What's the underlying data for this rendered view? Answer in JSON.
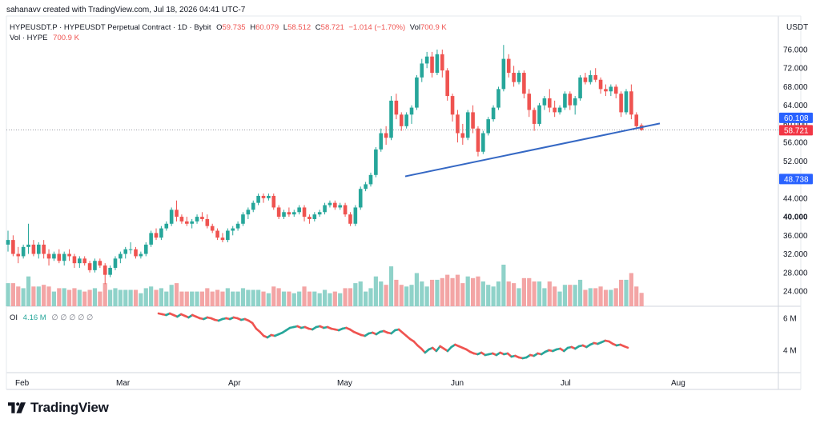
{
  "header": {
    "attribution": "sahanavv created with TradingView.com, Jul 18, 2026 04:41 UTC-7"
  },
  "legend": {
    "symbol": "HYPEUSDT.P · HYPEUSDT Perpetual Contract · 1D · Bybit",
    "o_label": "O",
    "o_value": "59.735",
    "h_label": "H",
    "h_value": "60.079",
    "l_label": "L",
    "l_value": "58.512",
    "c_label": "C",
    "c_value": "58.721",
    "change": "−1.014 (−1.70%)",
    "vol_label": "Vol",
    "vol_value": "700.9 K",
    "vol_line_label": "Vol · HYPE",
    "vol_line_value": "700.9 K"
  },
  "oi_legend": {
    "label": "OI",
    "value": "4.16 M",
    "placeholders": "∅ ∅ ∅ ∅ ∅"
  },
  "branding": {
    "text": "TradingView"
  },
  "colors": {
    "up": "#26a69a",
    "down": "#ef5350",
    "up_vol": "#8fd2c9",
    "down_vol": "#f3a5a5",
    "trendline": "#3568c4",
    "price_label": "#f23645",
    "blue_label": "#2962ff"
  },
  "chart_data": {
    "type": "candlestick",
    "currency": "USDT",
    "y_ticks": [
      "76.000",
      "72.000",
      "68.000",
      "64.000",
      "60.000",
      "56.000",
      "52.000",
      "48.000",
      "44.000",
      "40.000",
      "36.000",
      "32.000",
      "28.000",
      "24.000"
    ],
    "y_tick_values": [
      76,
      72,
      68,
      64,
      60,
      56,
      52,
      48,
      44,
      40,
      36,
      32,
      28,
      24
    ],
    "ylim": [
      21,
      78
    ],
    "x_labels": [
      "Feb",
      "Mar",
      "Apr",
      "May",
      "Jun",
      "Jul",
      "Aug"
    ],
    "price_labels": {
      "upper": "60.108",
      "last": "58.721",
      "trendline": "48.738"
    },
    "trendline": {
      "from_price": 48.7,
      "to_price": 60.1
    },
    "candles": [
      {
        "o": 34.0,
        "h": 37.0,
        "c": 35.0,
        "l": 32.5
      },
      {
        "o": 35.0,
        "h": 36.0,
        "c": 32.0,
        "l": 31.5
      },
      {
        "o": 32.0,
        "h": 33.5,
        "c": 31.5,
        "l": 30.0
      },
      {
        "o": 31.5,
        "h": 34.0,
        "c": 33.5,
        "l": 31.0
      },
      {
        "o": 33.5,
        "h": 38.5,
        "c": 34.0,
        "l": 32.0
      },
      {
        "o": 34.0,
        "h": 35.0,
        "c": 32.0,
        "l": 31.5
      },
      {
        "o": 32.0,
        "h": 34.5,
        "c": 34.0,
        "l": 31.0
      },
      {
        "o": 34.0,
        "h": 35.0,
        "c": 32.0,
        "l": 31.0
      },
      {
        "o": 32.0,
        "h": 33.0,
        "c": 31.0,
        "l": 29.5
      },
      {
        "o": 31.0,
        "h": 32.5,
        "c": 32.0,
        "l": 30.5
      },
      {
        "o": 32.0,
        "h": 33.0,
        "c": 30.5,
        "l": 30.0
      },
      {
        "o": 30.5,
        "h": 32.5,
        "c": 32.0,
        "l": 29.5
      },
      {
        "o": 32.0,
        "h": 33.0,
        "c": 31.5,
        "l": 30.5
      },
      {
        "o": 31.5,
        "h": 32.0,
        "c": 30.0,
        "l": 29.0
      },
      {
        "o": 30.0,
        "h": 31.5,
        "c": 31.0,
        "l": 29.0
      },
      {
        "o": 31.0,
        "h": 31.5,
        "c": 30.0,
        "l": 29.5
      },
      {
        "o": 30.0,
        "h": 30.5,
        "c": 28.5,
        "l": 28.0
      },
      {
        "o": 28.5,
        "h": 31.0,
        "c": 30.5,
        "l": 28.0
      },
      {
        "o": 30.5,
        "h": 31.0,
        "c": 29.5,
        "l": 29.0
      },
      {
        "o": 29.5,
        "h": 30.0,
        "c": 27.5,
        "l": 25.5
      },
      {
        "o": 27.5,
        "h": 29.5,
        "c": 29.0,
        "l": 27.0
      },
      {
        "o": 29.0,
        "h": 31.5,
        "c": 31.0,
        "l": 28.5
      },
      {
        "o": 31.0,
        "h": 32.5,
        "c": 32.0,
        "l": 30.0
      },
      {
        "o": 32.0,
        "h": 33.5,
        "c": 33.0,
        "l": 31.0
      },
      {
        "o": 33.0,
        "h": 34.5,
        "c": 33.0,
        "l": 32.0
      },
      {
        "o": 33.0,
        "h": 33.5,
        "c": 31.5,
        "l": 31.0
      },
      {
        "o": 31.5,
        "h": 32.5,
        "c": 32.0,
        "l": 31.0
      },
      {
        "o": 32.0,
        "h": 34.5,
        "c": 34.0,
        "l": 31.5
      },
      {
        "o": 34.0,
        "h": 37.0,
        "c": 36.5,
        "l": 33.5
      },
      {
        "o": 36.5,
        "h": 37.5,
        "c": 35.5,
        "l": 35.0
      },
      {
        "o": 35.5,
        "h": 38.0,
        "c": 37.5,
        "l": 35.0
      },
      {
        "o": 37.5,
        "h": 39.0,
        "c": 38.5,
        "l": 37.0
      },
      {
        "o": 38.5,
        "h": 42.0,
        "c": 41.5,
        "l": 38.0
      },
      {
        "o": 41.5,
        "h": 43.5,
        "c": 40.0,
        "l": 39.0
      },
      {
        "o": 40.0,
        "h": 40.5,
        "c": 39.0,
        "l": 38.5
      },
      {
        "o": 39.0,
        "h": 40.0,
        "c": 38.5,
        "l": 38.0
      },
      {
        "o": 38.5,
        "h": 39.5,
        "c": 39.0,
        "l": 37.5
      },
      {
        "o": 39.0,
        "h": 40.5,
        "c": 40.0,
        "l": 38.5
      },
      {
        "o": 40.0,
        "h": 41.0,
        "c": 39.5,
        "l": 39.0
      },
      {
        "o": 39.5,
        "h": 40.5,
        "c": 38.0,
        "l": 37.5
      },
      {
        "o": 38.0,
        "h": 38.5,
        "c": 37.0,
        "l": 36.5
      },
      {
        "o": 37.0,
        "h": 37.5,
        "c": 35.5,
        "l": 35.0
      },
      {
        "o": 35.5,
        "h": 36.5,
        "c": 35.0,
        "l": 34.5
      },
      {
        "o": 35.0,
        "h": 37.5,
        "c": 37.0,
        "l": 34.5
      },
      {
        "o": 37.0,
        "h": 38.0,
        "c": 37.5,
        "l": 36.0
      },
      {
        "o": 37.5,
        "h": 39.0,
        "c": 38.5,
        "l": 37.0
      },
      {
        "o": 38.5,
        "h": 41.0,
        "c": 40.5,
        "l": 38.0
      },
      {
        "o": 40.5,
        "h": 42.0,
        "c": 41.5,
        "l": 39.5
      },
      {
        "o": 41.5,
        "h": 43.5,
        "c": 43.0,
        "l": 41.0
      },
      {
        "o": 43.0,
        "h": 45.0,
        "c": 44.5,
        "l": 42.5
      },
      {
        "o": 44.5,
        "h": 45.0,
        "c": 44.0,
        "l": 43.0
      },
      {
        "o": 44.0,
        "h": 45.0,
        "c": 44.5,
        "l": 43.5
      },
      {
        "o": 44.5,
        "h": 45.0,
        "c": 42.0,
        "l": 41.5
      },
      {
        "o": 42.0,
        "h": 42.5,
        "c": 40.0,
        "l": 39.5
      },
      {
        "o": 40.0,
        "h": 41.5,
        "c": 41.0,
        "l": 39.5
      },
      {
        "o": 41.0,
        "h": 42.0,
        "c": 40.5,
        "l": 40.0
      },
      {
        "o": 40.5,
        "h": 41.5,
        "c": 41.0,
        "l": 40.0
      },
      {
        "o": 41.0,
        "h": 42.5,
        "c": 42.0,
        "l": 40.5
      },
      {
        "o": 42.0,
        "h": 42.5,
        "c": 40.0,
        "l": 39.0
      },
      {
        "o": 40.0,
        "h": 40.5,
        "c": 39.5,
        "l": 38.5
      },
      {
        "o": 39.5,
        "h": 41.0,
        "c": 40.5,
        "l": 39.0
      },
      {
        "o": 40.5,
        "h": 41.5,
        "c": 41.0,
        "l": 40.0
      },
      {
        "o": 41.0,
        "h": 43.0,
        "c": 42.5,
        "l": 40.5
      },
      {
        "o": 42.5,
        "h": 43.5,
        "c": 43.0,
        "l": 42.0
      },
      {
        "o": 43.0,
        "h": 43.5,
        "c": 42.0,
        "l": 41.5
      },
      {
        "o": 42.0,
        "h": 43.0,
        "c": 42.5,
        "l": 41.5
      },
      {
        "o": 42.5,
        "h": 43.0,
        "c": 40.5,
        "l": 40.0
      },
      {
        "o": 40.5,
        "h": 41.0,
        "c": 38.5,
        "l": 38.0
      },
      {
        "o": 38.5,
        "h": 42.5,
        "c": 42.0,
        "l": 38.0
      },
      {
        "o": 42.0,
        "h": 46.5,
        "c": 46.0,
        "l": 41.5
      },
      {
        "o": 46.0,
        "h": 47.5,
        "c": 47.0,
        "l": 45.5
      },
      {
        "o": 47.0,
        "h": 49.5,
        "c": 49.0,
        "l": 46.5
      },
      {
        "o": 49.0,
        "h": 55.0,
        "c": 54.5,
        "l": 48.5
      },
      {
        "o": 54.5,
        "h": 59.0,
        "c": 58.0,
        "l": 54.0
      },
      {
        "o": 58.0,
        "h": 59.5,
        "c": 57.0,
        "l": 55.5
      },
      {
        "o": 57.0,
        "h": 66.0,
        "c": 65.0,
        "l": 56.5
      },
      {
        "o": 65.0,
        "h": 66.5,
        "c": 62.0,
        "l": 61.0
      },
      {
        "o": 62.0,
        "h": 62.5,
        "c": 59.5,
        "l": 58.5
      },
      {
        "o": 59.5,
        "h": 62.5,
        "c": 62.0,
        "l": 59.0
      },
      {
        "o": 62.0,
        "h": 64.0,
        "c": 63.5,
        "l": 60.0
      },
      {
        "o": 63.5,
        "h": 70.5,
        "c": 70.0,
        "l": 63.0
      },
      {
        "o": 70.0,
        "h": 74.0,
        "c": 73.0,
        "l": 69.0
      },
      {
        "o": 73.0,
        "h": 75.5,
        "c": 74.5,
        "l": 72.0
      },
      {
        "o": 74.5,
        "h": 75.5,
        "c": 71.0,
        "l": 70.0
      },
      {
        "o": 71.0,
        "h": 76.0,
        "c": 75.0,
        "l": 70.5
      },
      {
        "o": 75.0,
        "h": 76.0,
        "c": 71.5,
        "l": 70.0
      },
      {
        "o": 71.5,
        "h": 72.0,
        "c": 66.0,
        "l": 65.0
      },
      {
        "o": 66.0,
        "h": 66.5,
        "c": 62.0,
        "l": 60.5
      },
      {
        "o": 62.0,
        "h": 63.0,
        "c": 58.0,
        "l": 56.0
      },
      {
        "o": 58.0,
        "h": 60.0,
        "c": 57.0,
        "l": 55.5
      },
      {
        "o": 57.0,
        "h": 63.0,
        "c": 62.5,
        "l": 56.5
      },
      {
        "o": 62.5,
        "h": 64.0,
        "c": 59.0,
        "l": 58.0
      },
      {
        "o": 59.0,
        "h": 59.5,
        "c": 54.0,
        "l": 53.0
      },
      {
        "o": 54.0,
        "h": 58.5,
        "c": 58.0,
        "l": 53.5
      },
      {
        "o": 58.0,
        "h": 61.5,
        "c": 61.0,
        "l": 57.5
      },
      {
        "o": 61.0,
        "h": 64.0,
        "c": 63.5,
        "l": 60.5
      },
      {
        "o": 63.5,
        "h": 68.0,
        "c": 67.5,
        "l": 63.0
      },
      {
        "o": 67.5,
        "h": 77.0,
        "c": 74.0,
        "l": 67.0
      },
      {
        "o": 74.0,
        "h": 75.0,
        "c": 71.0,
        "l": 70.0
      },
      {
        "o": 71.0,
        "h": 72.5,
        "c": 69.0,
        "l": 68.0
      },
      {
        "o": 69.0,
        "h": 71.5,
        "c": 71.0,
        "l": 68.5
      },
      {
        "o": 71.0,
        "h": 71.5,
        "c": 66.5,
        "l": 65.5
      },
      {
        "o": 66.5,
        "h": 67.5,
        "c": 63.0,
        "l": 61.5
      },
      {
        "o": 63.0,
        "h": 63.5,
        "c": 60.0,
        "l": 58.5
      },
      {
        "o": 60.0,
        "h": 64.5,
        "c": 64.0,
        "l": 59.5
      },
      {
        "o": 64.0,
        "h": 66.0,
        "c": 65.5,
        "l": 63.0
      },
      {
        "o": 65.5,
        "h": 67.5,
        "c": 63.5,
        "l": 62.5
      },
      {
        "o": 63.5,
        "h": 65.0,
        "c": 62.5,
        "l": 61.5
      },
      {
        "o": 62.5,
        "h": 64.0,
        "c": 63.5,
        "l": 62.0
      },
      {
        "o": 63.5,
        "h": 67.0,
        "c": 66.5,
        "l": 63.0
      },
      {
        "o": 66.5,
        "h": 67.0,
        "c": 64.0,
        "l": 63.0
      },
      {
        "o": 64.0,
        "h": 66.0,
        "c": 65.5,
        "l": 62.0
      },
      {
        "o": 65.5,
        "h": 70.5,
        "c": 70.0,
        "l": 65.0
      },
      {
        "o": 70.0,
        "h": 71.0,
        "c": 69.0,
        "l": 68.5
      },
      {
        "o": 69.0,
        "h": 71.5,
        "c": 70.5,
        "l": 68.5
      },
      {
        "o": 70.5,
        "h": 72.0,
        "c": 69.5,
        "l": 69.0
      },
      {
        "o": 69.5,
        "h": 70.0,
        "c": 67.5,
        "l": 66.5
      },
      {
        "o": 67.5,
        "h": 68.5,
        "c": 67.0,
        "l": 66.0
      },
      {
        "o": 67.0,
        "h": 68.5,
        "c": 68.0,
        "l": 66.0
      },
      {
        "o": 68.0,
        "h": 68.5,
        "c": 66.5,
        "l": 65.5
      },
      {
        "o": 66.5,
        "h": 67.0,
        "c": 62.5,
        "l": 61.5
      },
      {
        "o": 62.5,
        "h": 67.5,
        "c": 67.0,
        "l": 62.0
      },
      {
        "o": 67.0,
        "h": 68.5,
        "c": 62.0,
        "l": 61.0
      },
      {
        "o": 62.0,
        "h": 62.5,
        "c": 59.5,
        "l": 59.0
      },
      {
        "o": 59.7,
        "h": 60.1,
        "c": 58.7,
        "l": 58.5
      }
    ],
    "volume_hint": "volume bars shaded by candle direction in the lower part of the price pane",
    "oi_series": {
      "name": "OI",
      "y_ticks": [
        "6 M",
        "4 M"
      ],
      "y_tick_values": [
        6,
        4
      ],
      "x_start_index": 62,
      "values": [
        6.3,
        6.25,
        6.2,
        6.3,
        6.2,
        6.1,
        6.25,
        6.15,
        6.05,
        6.2,
        6.1,
        6.0,
        5.95,
        6.05,
        6.0,
        5.9,
        5.85,
        5.95,
        6.0,
        5.95,
        6.05,
        6.0,
        5.9,
        5.95,
        5.85,
        5.7,
        5.35,
        5.15,
        4.9,
        4.8,
        4.95,
        4.9,
        5.0,
        5.1,
        5.25,
        5.4,
        5.45,
        5.5,
        5.4,
        5.45,
        5.35,
        5.3,
        5.45,
        5.5,
        5.4,
        5.45,
        5.35,
        5.3,
        5.25,
        5.35,
        5.4,
        5.3,
        5.15,
        5.05,
        4.95,
        4.9,
        5.05,
        5.1,
        5.0,
        5.15,
        5.2,
        5.1,
        5.05,
        5.25,
        5.3,
        5.1,
        4.9,
        4.7,
        4.55,
        4.3,
        4.1,
        3.85,
        4.05,
        4.15,
        3.95,
        4.25,
        4.1,
        3.95,
        4.2,
        4.35,
        4.25,
        4.15,
        4.05,
        3.9,
        3.8,
        3.75,
        3.85,
        3.7,
        3.75,
        3.8,
        3.7,
        3.85,
        3.75,
        3.8,
        3.6,
        3.65,
        3.55,
        3.5,
        3.55,
        3.7,
        3.65,
        3.8,
        3.75,
        3.9,
        4.0,
        3.95,
        4.05,
        4.1,
        3.95,
        4.15,
        4.2,
        4.1,
        4.25,
        4.3,
        4.2,
        4.35,
        4.45,
        4.4,
        4.5,
        4.6,
        4.55,
        4.4,
        4.3,
        4.35,
        4.25,
        4.16
      ]
    }
  }
}
